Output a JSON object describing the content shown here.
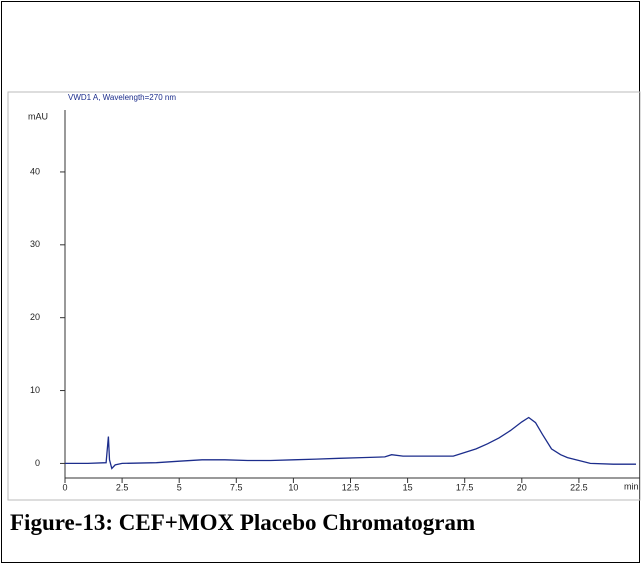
{
  "chart_data": {
    "type": "line",
    "title": "VWD1 A, Wavelength=270 nm",
    "y_label": "mAU",
    "x_label": "min",
    "caption": "Figure-13: CEF+MOX Placebo Chromatogram",
    "color": "#1c2d8c",
    "x": [
      0,
      1,
      1.8,
      1.9,
      1.95,
      2.05,
      2.2,
      2.5,
      4,
      5,
      6,
      7,
      8,
      9,
      10,
      11,
      12,
      13,
      14,
      14.3,
      14.8,
      16,
      17,
      17.5,
      18,
      18.5,
      19,
      19.5,
      20,
      20.3,
      20.6,
      20.9,
      21.3,
      21.7,
      22,
      22.5,
      23,
      24,
      25
    ],
    "y": [
      0,
      0,
      0.1,
      3.7,
      0.5,
      -0.7,
      -0.2,
      0,
      0.1,
      0.3,
      0.5,
      0.5,
      0.4,
      0.4,
      0.5,
      0.6,
      0.7,
      0.8,
      0.9,
      1.2,
      1.0,
      1.0,
      1.0,
      1.5,
      2.0,
      2.7,
      3.5,
      4.5,
      5.7,
      6.3,
      5.6,
      4.0,
      2.0,
      1.2,
      0.8,
      0.4,
      0,
      -0.1,
      -0.1
    ],
    "xlim": [
      0,
      25
    ],
    "ylim": [
      -2,
      48.5
    ],
    "xticks": [
      0,
      2.5,
      5,
      7.5,
      10,
      12.5,
      15,
      17.5,
      20,
      22.5
    ],
    "yticks": [
      0,
      10,
      20,
      30,
      40
    ]
  }
}
